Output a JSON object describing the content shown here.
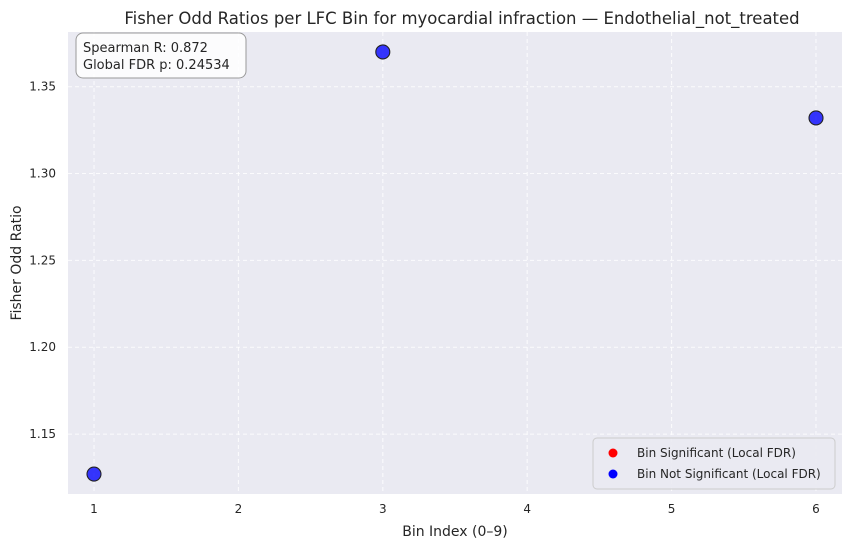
{
  "chart_data": {
    "type": "scatter",
    "title": "Fisher Odd Ratios per LFC Bin for myocardial infraction — Endothelial_not_treated",
    "xlabel": "Bin Index (0–9)",
    "ylabel": "Fisher Odd Ratio",
    "xlim": [
      0.82,
      6.18
    ],
    "ylim": [
      1.1155,
      1.3815
    ],
    "xticks": [
      1,
      2,
      3,
      4,
      5,
      6
    ],
    "yticks": [
      1.15,
      1.2,
      1.25,
      1.3,
      1.35
    ],
    "ytick_labels": [
      "1.15",
      "1.20",
      "1.25",
      "1.30",
      "1.35"
    ],
    "grid": true,
    "background": "#eaeaf2",
    "series": [
      {
        "name": "Bin Not Significant (Local FDR)",
        "color": "#0000ff",
        "points": [
          {
            "x": 1,
            "y": 1.127
          },
          {
            "x": 3,
            "y": 1.37
          },
          {
            "x": 6,
            "y": 1.332
          }
        ]
      },
      {
        "name": "Bin Significant (Local FDR)",
        "color": "#ff0000",
        "points": []
      }
    ],
    "legend": {
      "position": "lower-right",
      "entries": [
        {
          "label": "Bin Significant (Local FDR)",
          "color": "#ff0000"
        },
        {
          "label": "Bin Not Significant (Local FDR)",
          "color": "#0000ff"
        }
      ]
    },
    "annotation": {
      "line1": "Spearman R: 0.872",
      "line2": "Global FDR p: 0.24534"
    }
  }
}
